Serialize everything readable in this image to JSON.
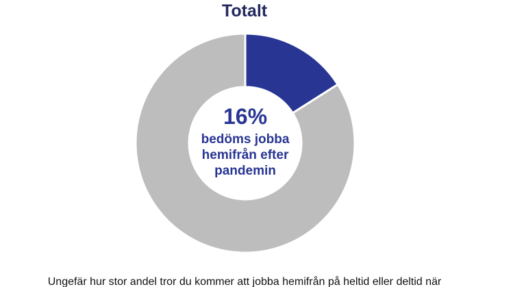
{
  "chart_data": {
    "type": "pie",
    "title": "Totalt",
    "categories": [
      "",
      ""
    ],
    "values": [
      16,
      84
    ],
    "colors": [
      "#283593",
      "#bdbdbd"
    ],
    "center_value": "16%",
    "center_text": [
      "bedöms jobba",
      "hemifrån efter",
      "pandemin"
    ]
  },
  "footer": {
    "text": "Ungefär hur stor andel tror du kommer att jobba hemifrån på heltid eller deltid när"
  }
}
